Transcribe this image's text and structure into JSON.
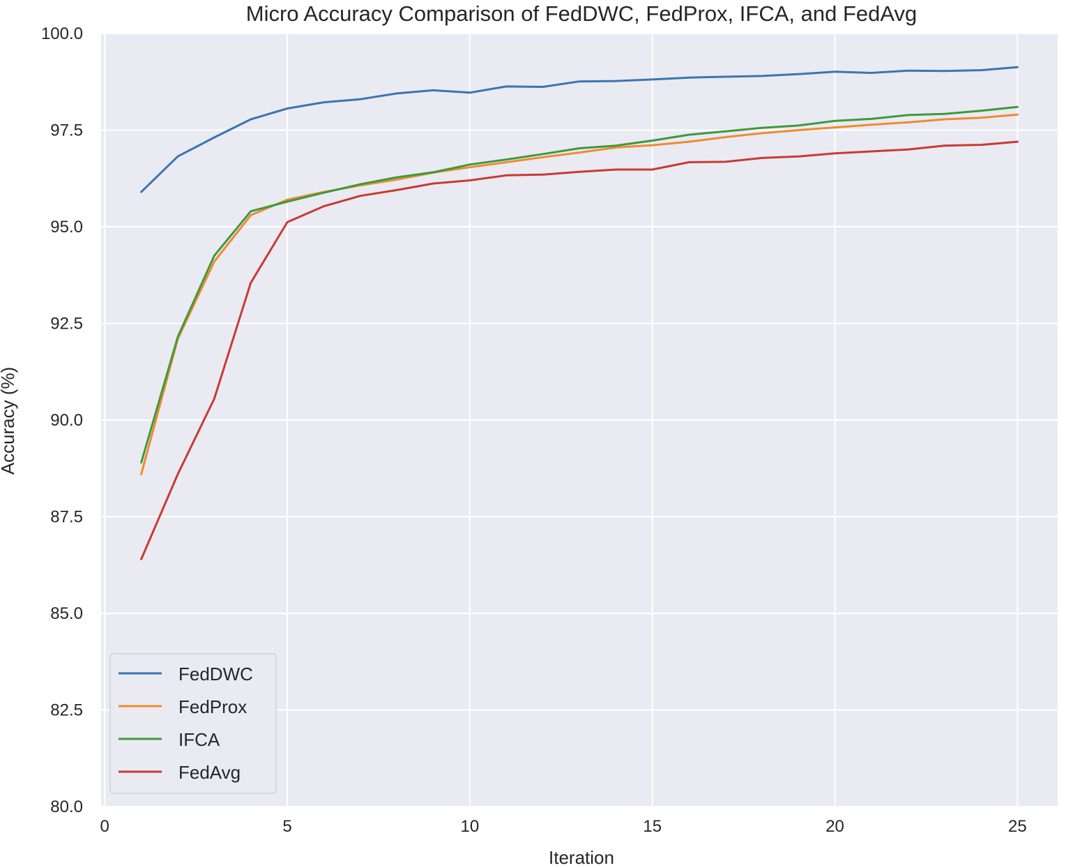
{
  "chart_data": {
    "type": "line",
    "title": "Micro Accuracy Comparison of FedDWC, FedProx, IFCA, and FedAvg",
    "xlabel": "Iteration",
    "ylabel": "Accuracy (%)",
    "xlim": [
      -0.1,
      26.1
    ],
    "ylim": [
      80.0,
      100.0
    ],
    "xticks": [
      0,
      5,
      10,
      15,
      20,
      25
    ],
    "yticks": [
      80.0,
      82.5,
      85.0,
      87.5,
      90.0,
      92.5,
      95.0,
      97.5,
      100.0
    ],
    "xtick_labels": [
      "0",
      "5",
      "10",
      "15",
      "20",
      "25"
    ],
    "ytick_labels": [
      "80.0",
      "82.5",
      "85.0",
      "87.5",
      "90.0",
      "92.5",
      "95.0",
      "97.5",
      "100.0"
    ],
    "grid": true,
    "legend_position": "lower-left",
    "x": [
      1,
      2,
      3,
      4,
      5,
      6,
      7,
      8,
      9,
      10,
      11,
      12,
      13,
      14,
      15,
      16,
      17,
      18,
      19,
      20,
      21,
      22,
      23,
      24,
      25
    ],
    "series": [
      {
        "name": "FedDWC",
        "color": "#3a75b0",
        "values": [
          95.9,
          96.82,
          97.31,
          97.78,
          98.06,
          98.22,
          98.3,
          98.45,
          98.53,
          98.47,
          98.63,
          98.62,
          98.76,
          98.77,
          98.81,
          98.86,
          98.88,
          98.9,
          98.95,
          99.01,
          98.98,
          99.04,
          99.03,
          99.05,
          99.13
        ]
      },
      {
        "name": "FedProx",
        "color": "#f08a2e",
        "values": [
          88.6,
          92.1,
          94.1,
          95.3,
          95.7,
          95.9,
          96.07,
          96.22,
          96.4,
          96.54,
          96.67,
          96.8,
          96.92,
          97.05,
          97.11,
          97.2,
          97.32,
          97.42,
          97.5,
          97.57,
          97.64,
          97.7,
          97.78,
          97.82,
          97.9
        ]
      },
      {
        "name": "IFCA",
        "color": "#3c9a3c",
        "values": [
          88.9,
          92.15,
          94.25,
          95.4,
          95.65,
          95.88,
          96.1,
          96.28,
          96.41,
          96.61,
          96.74,
          96.88,
          97.03,
          97.1,
          97.23,
          97.38,
          97.47,
          97.56,
          97.62,
          97.74,
          97.79,
          97.89,
          97.92,
          98.0,
          98.1
        ]
      },
      {
        "name": "FedAvg",
        "color": "#c83a33",
        "values": [
          86.4,
          88.6,
          90.55,
          93.55,
          95.12,
          95.53,
          95.8,
          95.95,
          96.12,
          96.2,
          96.33,
          96.35,
          96.42,
          96.48,
          96.48,
          96.67,
          96.68,
          96.78,
          96.82,
          96.9,
          96.95,
          97.0,
          97.1,
          97.12,
          97.2
        ]
      }
    ]
  }
}
